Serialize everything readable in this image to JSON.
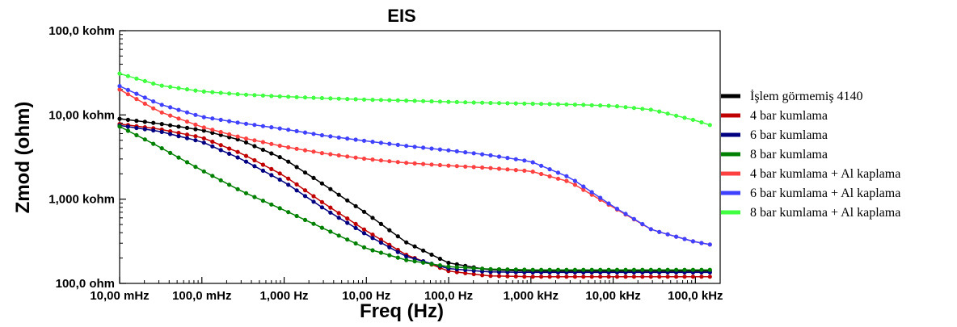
{
  "chart_data": {
    "type": "line",
    "title": "EIS",
    "xlabel": "Freq (Hz)",
    "ylabel": "Zmod (ohm)",
    "xscale": "log",
    "yscale": "log",
    "xlim": [
      0.01,
      200000
    ],
    "ylim": [
      100,
      100000
    ],
    "grid": false,
    "legend_position": "right",
    "x_ticks": [
      {
        "value": 0.01,
        "label": "10,00 mHz"
      },
      {
        "value": 0.1,
        "label": "100,0 mHz"
      },
      {
        "value": 1,
        "label": "1,000 Hz"
      },
      {
        "value": 10,
        "label": "10,00 Hz"
      },
      {
        "value": 100,
        "label": "100,0 Hz"
      },
      {
        "value": 1000,
        "label": "1,000 kHz"
      },
      {
        "value": 10000,
        "label": "10,00 kHz"
      },
      {
        "value": 100000,
        "label": "100,0 kHz"
      }
    ],
    "y_ticks": [
      {
        "value": 100,
        "label": "100,0 ohm"
      },
      {
        "value": 1000,
        "label": "1,000 kohm"
      },
      {
        "value": 10000,
        "label": "10,00 kohm"
      },
      {
        "value": 100000,
        "label": "100,0 kohm"
      }
    ],
    "series": [
      {
        "name": "İşlem görmemiş 4140",
        "color": "#000000",
        "x": [
          0.01,
          0.03,
          0.1,
          0.3,
          1,
          3,
          10,
          30,
          100,
          300,
          1000,
          3000,
          10000,
          30000,
          100000,
          150000
        ],
        "y": [
          9000,
          7900,
          6600,
          5000,
          3000,
          1500,
          680,
          310,
          175,
          145,
          140,
          140,
          140,
          140,
          140,
          140
        ]
      },
      {
        "name": "4 bar kumlama",
        "color": "#c00000",
        "x": [
          0.01,
          0.03,
          0.1,
          0.3,
          1,
          3,
          10,
          30,
          100,
          300,
          1000,
          3000,
          10000,
          30000,
          100000,
          150000
        ],
        "y": [
          7800,
          6800,
          5400,
          3500,
          1900,
          900,
          420,
          220,
          140,
          123,
          120,
          120,
          120,
          120,
          120,
          120
        ]
      },
      {
        "name": "6 bar kumlama",
        "color": "#000080",
        "x": [
          0.01,
          0.03,
          0.1,
          0.3,
          1,
          3,
          10,
          30,
          100,
          300,
          1000,
          3000,
          10000,
          30000,
          100000,
          150000
        ],
        "y": [
          7500,
          6400,
          4800,
          3000,
          1600,
          780,
          380,
          210,
          150,
          137,
          135,
          135,
          135,
          135,
          135,
          135
        ]
      },
      {
        "name": "8 bar kumlama",
        "color": "#008000",
        "x": [
          0.01,
          0.03,
          0.1,
          0.3,
          1,
          3,
          10,
          30,
          100,
          300,
          1000,
          3000,
          10000,
          30000,
          100000,
          150000
        ],
        "y": [
          7300,
          4200,
          2200,
          1250,
          740,
          450,
          260,
          190,
          158,
          148,
          145,
          145,
          145,
          145,
          145,
          145
        ]
      },
      {
        "name": "4 bar kumlama + Al kaplama",
        "color": "#ff4040",
        "x": [
          0.01,
          0.03,
          0.1,
          0.3,
          1,
          3,
          10,
          30,
          100,
          300,
          1000,
          3000,
          10000,
          30000,
          100000,
          150000
        ],
        "y": [
          20000,
          11000,
          7200,
          5400,
          4200,
          3500,
          3000,
          2700,
          2500,
          2350,
          2150,
          1600,
          800,
          430,
          310,
          290
        ]
      },
      {
        "name": "6 bar kumlama + Al kaplama",
        "color": "#4040ff",
        "x": [
          0.01,
          0.03,
          0.1,
          0.3,
          1,
          3,
          10,
          30,
          100,
          300,
          1000,
          3000,
          10000,
          30000,
          100000,
          150000
        ],
        "y": [
          22000,
          13500,
          9500,
          8000,
          6800,
          5700,
          4900,
          4300,
          3800,
          3350,
          2800,
          1800,
          820,
          430,
          310,
          290
        ]
      },
      {
        "name": "8 bar kumlama + Al kaplama",
        "color": "#40ff40",
        "x": [
          0.01,
          0.03,
          0.1,
          0.3,
          1,
          3,
          10,
          30,
          100,
          300,
          1000,
          3000,
          10000,
          30000,
          100000,
          150000
        ],
        "y": [
          31000,
          22500,
          19000,
          17500,
          16500,
          15800,
          15200,
          14800,
          14300,
          13900,
          13600,
          13300,
          12800,
          11500,
          8600,
          7600
        ]
      }
    ]
  }
}
